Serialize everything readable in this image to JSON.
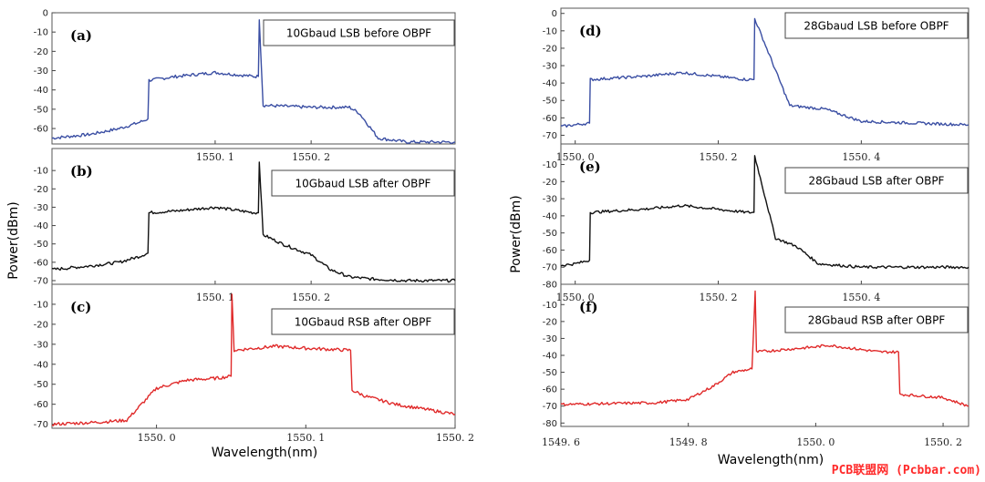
{
  "watermark": "PCB联盟网 (Pcbbar.com)",
  "chart_data": [
    {
      "type": "line",
      "group": "left",
      "panel_label": "(a)",
      "annotation": "10Gbaud LSB before OBPF",
      "color": "#3a4ea3",
      "ylim": [
        -68,
        0
      ],
      "yticks": [
        0,
        -10,
        -20,
        -30,
        -40,
        -50,
        -60
      ],
      "xlim": [
        1549.93,
        1550.35
      ],
      "xticks": [
        1550.1,
        1550.2
      ],
      "xtick_labels": [
        "1550. 1",
        "1550. 2"
      ],
      "ylabel": "",
      "xlabel": "",
      "series": [
        {
          "x": [
            1549.93,
            1549.97,
            1550.0,
            1550.02,
            1550.03,
            1550.031,
            1550.06,
            1550.1,
            1550.14,
            1550.145,
            1550.146,
            1550.15,
            1550.2,
            1550.24,
            1550.25,
            1550.27,
            1550.3,
            1550.35
          ],
          "y": [
            -65,
            -63,
            -60,
            -57,
            -55,
            -35,
            -33,
            -31,
            -33,
            -33,
            -3,
            -48,
            -49,
            -49,
            -52,
            -65,
            -67,
            -67
          ]
        }
      ]
    },
    {
      "type": "line",
      "group": "left",
      "panel_label": "(b)",
      "annotation": "10Gbaud LSB after OBPF",
      "color": "#111111",
      "ylim": [
        -72,
        2
      ],
      "yticks": [
        -10,
        -20,
        -30,
        -40,
        -50,
        -60,
        -70
      ],
      "xlim": [
        1549.93,
        1550.35
      ],
      "xticks": [
        1550.1,
        1550.2
      ],
      "xtick_labels": [
        "1550. 1",
        "1550. 2"
      ],
      "ylabel": "",
      "xlabel": "",
      "series": [
        {
          "x": [
            1549.93,
            1549.97,
            1550.0,
            1550.02,
            1550.03,
            1550.031,
            1550.06,
            1550.1,
            1550.14,
            1550.145,
            1550.146,
            1550.15,
            1550.17,
            1550.2,
            1550.22,
            1550.24,
            1550.26,
            1550.3,
            1550.35
          ],
          "y": [
            -64,
            -62,
            -60,
            -57,
            -55,
            -33,
            -32,
            -30,
            -33,
            -33,
            -5,
            -45,
            -50,
            -56,
            -64,
            -68,
            -69,
            -70,
            -70
          ]
        }
      ]
    },
    {
      "type": "line",
      "group": "left",
      "panel_label": "(c)",
      "annotation": "10Gbaud RSB after OBPF",
      "color": "#e02a2a",
      "ylim": [
        -72,
        0
      ],
      "yticks": [
        -10,
        -20,
        -30,
        -40,
        -50,
        -60,
        -70
      ],
      "xlim": [
        1549.93,
        1550.2
      ],
      "xticks": [
        1550.0,
        1550.1,
        1550.2
      ],
      "xtick_labels": [
        "1550. 0",
        "1550. 1",
        "1550. 2"
      ],
      "ylabel": "",
      "xlabel": "",
      "series": [
        {
          "x": [
            1549.93,
            1549.96,
            1549.98,
            1549.99,
            1550.0,
            1550.02,
            1550.04,
            1550.05,
            1550.0505,
            1550.052,
            1550.08,
            1550.1,
            1550.13,
            1550.131,
            1550.14,
            1550.16,
            1550.2
          ],
          "y": [
            -70,
            -69,
            -68,
            -60,
            -52,
            -48,
            -47,
            -46,
            -5,
            -33,
            -31,
            -32,
            -33,
            -53,
            -56,
            -60,
            -65
          ]
        }
      ]
    },
    {
      "type": "line",
      "group": "right",
      "panel_label": "(d)",
      "annotation": "28Gbaud LSB before OBPF",
      "color": "#3a4ea3",
      "ylim": [
        -75,
        3
      ],
      "yticks": [
        0,
        -10,
        -20,
        -30,
        -40,
        -50,
        -60,
        -70
      ],
      "xlim": [
        1549.98,
        1550.55
      ],
      "xticks": [
        1550.0,
        1550.2,
        1550.4
      ],
      "xtick_labels": [
        "1550. 0",
        "1550. 2",
        "1550. 4"
      ],
      "ylabel": "",
      "xlabel": "",
      "series": [
        {
          "x": [
            1549.98,
            1550.0,
            1550.02,
            1550.021,
            1550.1,
            1550.15,
            1550.24,
            1550.25,
            1550.251,
            1550.3,
            1550.35,
            1550.4,
            1550.55
          ],
          "y": [
            -65,
            -64,
            -63,
            -38,
            -36,
            -34,
            -38,
            -38,
            -3,
            -53,
            -55,
            -62,
            -64
          ]
        }
      ]
    },
    {
      "type": "line",
      "group": "right",
      "panel_label": "(e)",
      "annotation": "28Gbaud LSB after OBPF",
      "color": "#111111",
      "ylim": [
        -80,
        2
      ],
      "yticks": [
        -10,
        -20,
        -30,
        -40,
        -50,
        -60,
        -70,
        -80
      ],
      "xlim": [
        1549.98,
        1550.55
      ],
      "xticks": [
        1550.0,
        1550.2,
        1550.4
      ],
      "xtick_labels": [
        "1550. 0",
        "1550. 2",
        "1550. 4"
      ],
      "ylabel": "",
      "xlabel": "",
      "series": [
        {
          "x": [
            1549.98,
            1550.0,
            1550.02,
            1550.021,
            1550.1,
            1550.15,
            1550.24,
            1550.25,
            1550.251,
            1550.28,
            1550.31,
            1550.34,
            1550.4,
            1550.55
          ],
          "y": [
            -69,
            -68,
            -66,
            -38,
            -36,
            -34,
            -38,
            -38,
            -5,
            -53,
            -58,
            -68,
            -70,
            -70
          ]
        }
      ]
    },
    {
      "type": "line",
      "group": "right",
      "panel_label": "(f)",
      "annotation": "28Gbaud RSB after OBPF",
      "color": "#e02a2a",
      "ylim": [
        -82,
        2
      ],
      "yticks": [
        -10,
        -20,
        -30,
        -40,
        -50,
        -60,
        -70,
        -80
      ],
      "xlim": [
        1549.6,
        1550.24
      ],
      "xticks": [
        1549.6,
        1549.8,
        1550.0,
        1550.2
      ],
      "xtick_labels": [
        "1549. 6",
        "1549. 8",
        "1550. 0",
        "1550. 2"
      ],
      "ylabel": "",
      "xlabel": "",
      "series": [
        {
          "x": [
            1549.6,
            1549.75,
            1549.8,
            1549.84,
            1549.87,
            1549.9,
            1549.905,
            1549.907,
            1550.0,
            1550.02,
            1550.1,
            1550.13,
            1550.132,
            1550.2,
            1550.24
          ],
          "y": [
            -69,
            -68,
            -66,
            -58,
            -50,
            -48,
            -2,
            -38,
            -35,
            -34,
            -38,
            -38,
            -63,
            -65,
            -70
          ]
        }
      ]
    }
  ],
  "axis_titles": {
    "left_y": "Power(dBm)",
    "left_x": "Wavelength(nm)",
    "right_y": "Power(dBm)",
    "right_x": "Wavelength(nm)"
  }
}
